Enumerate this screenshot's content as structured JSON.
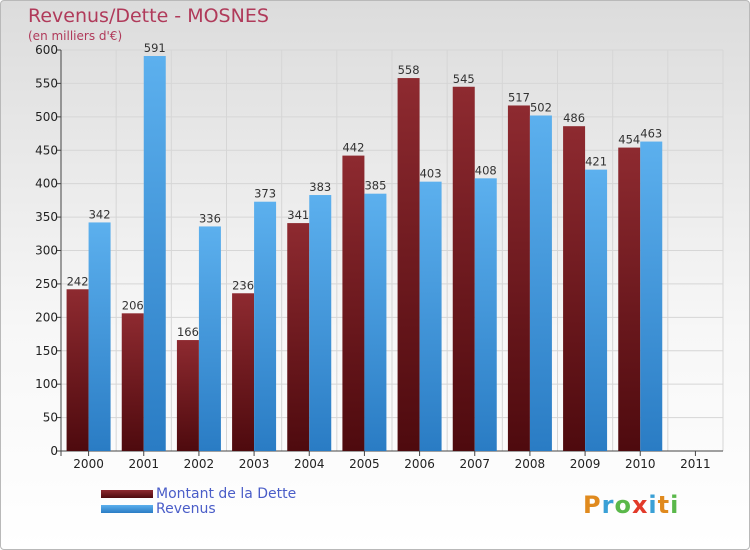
{
  "header": {
    "title": "Revenus/Dette - MOSNES",
    "subtitle": "(en milliers d'€)"
  },
  "colors": {
    "dette": "#7a1e24",
    "revenus": "#4aa3e4",
    "title": "#b03a5a",
    "legend_text": "#4a5dc8"
  },
  "legend": {
    "position": "bottom-left",
    "items": [
      "Montant de la Dette",
      "Revenus"
    ]
  },
  "logo": {
    "text": "Proxiti",
    "letters": [
      "P",
      "r",
      "o",
      "x",
      "i",
      "t",
      "i"
    ],
    "colors": [
      "#e08a1e",
      "#3aa0d6",
      "#5ab84a",
      "#e23a2a",
      "#3aa0d6",
      "#e08a1e",
      "#5ab84a"
    ]
  },
  "chart_data": {
    "type": "bar",
    "title": "Revenus/Dette - MOSNES",
    "ylabel": "(en milliers d'€)",
    "categories": [
      "2000",
      "2001",
      "2002",
      "2003",
      "2004",
      "2005",
      "2006",
      "2007",
      "2008",
      "2009",
      "2010",
      "2011"
    ],
    "series": [
      {
        "name": "Montant de la Dette",
        "values": [
          242,
          206,
          166,
          236,
          341,
          442,
          558,
          545,
          517,
          486,
          454,
          null
        ]
      },
      {
        "name": "Revenus",
        "values": [
          342,
          591,
          336,
          373,
          383,
          385,
          403,
          408,
          502,
          421,
          463,
          null
        ]
      }
    ],
    "ylim": [
      0,
      600
    ],
    "yticks": [
      0,
      50,
      100,
      150,
      200,
      250,
      300,
      350,
      400,
      450,
      500,
      550,
      600
    ],
    "grid": true
  }
}
